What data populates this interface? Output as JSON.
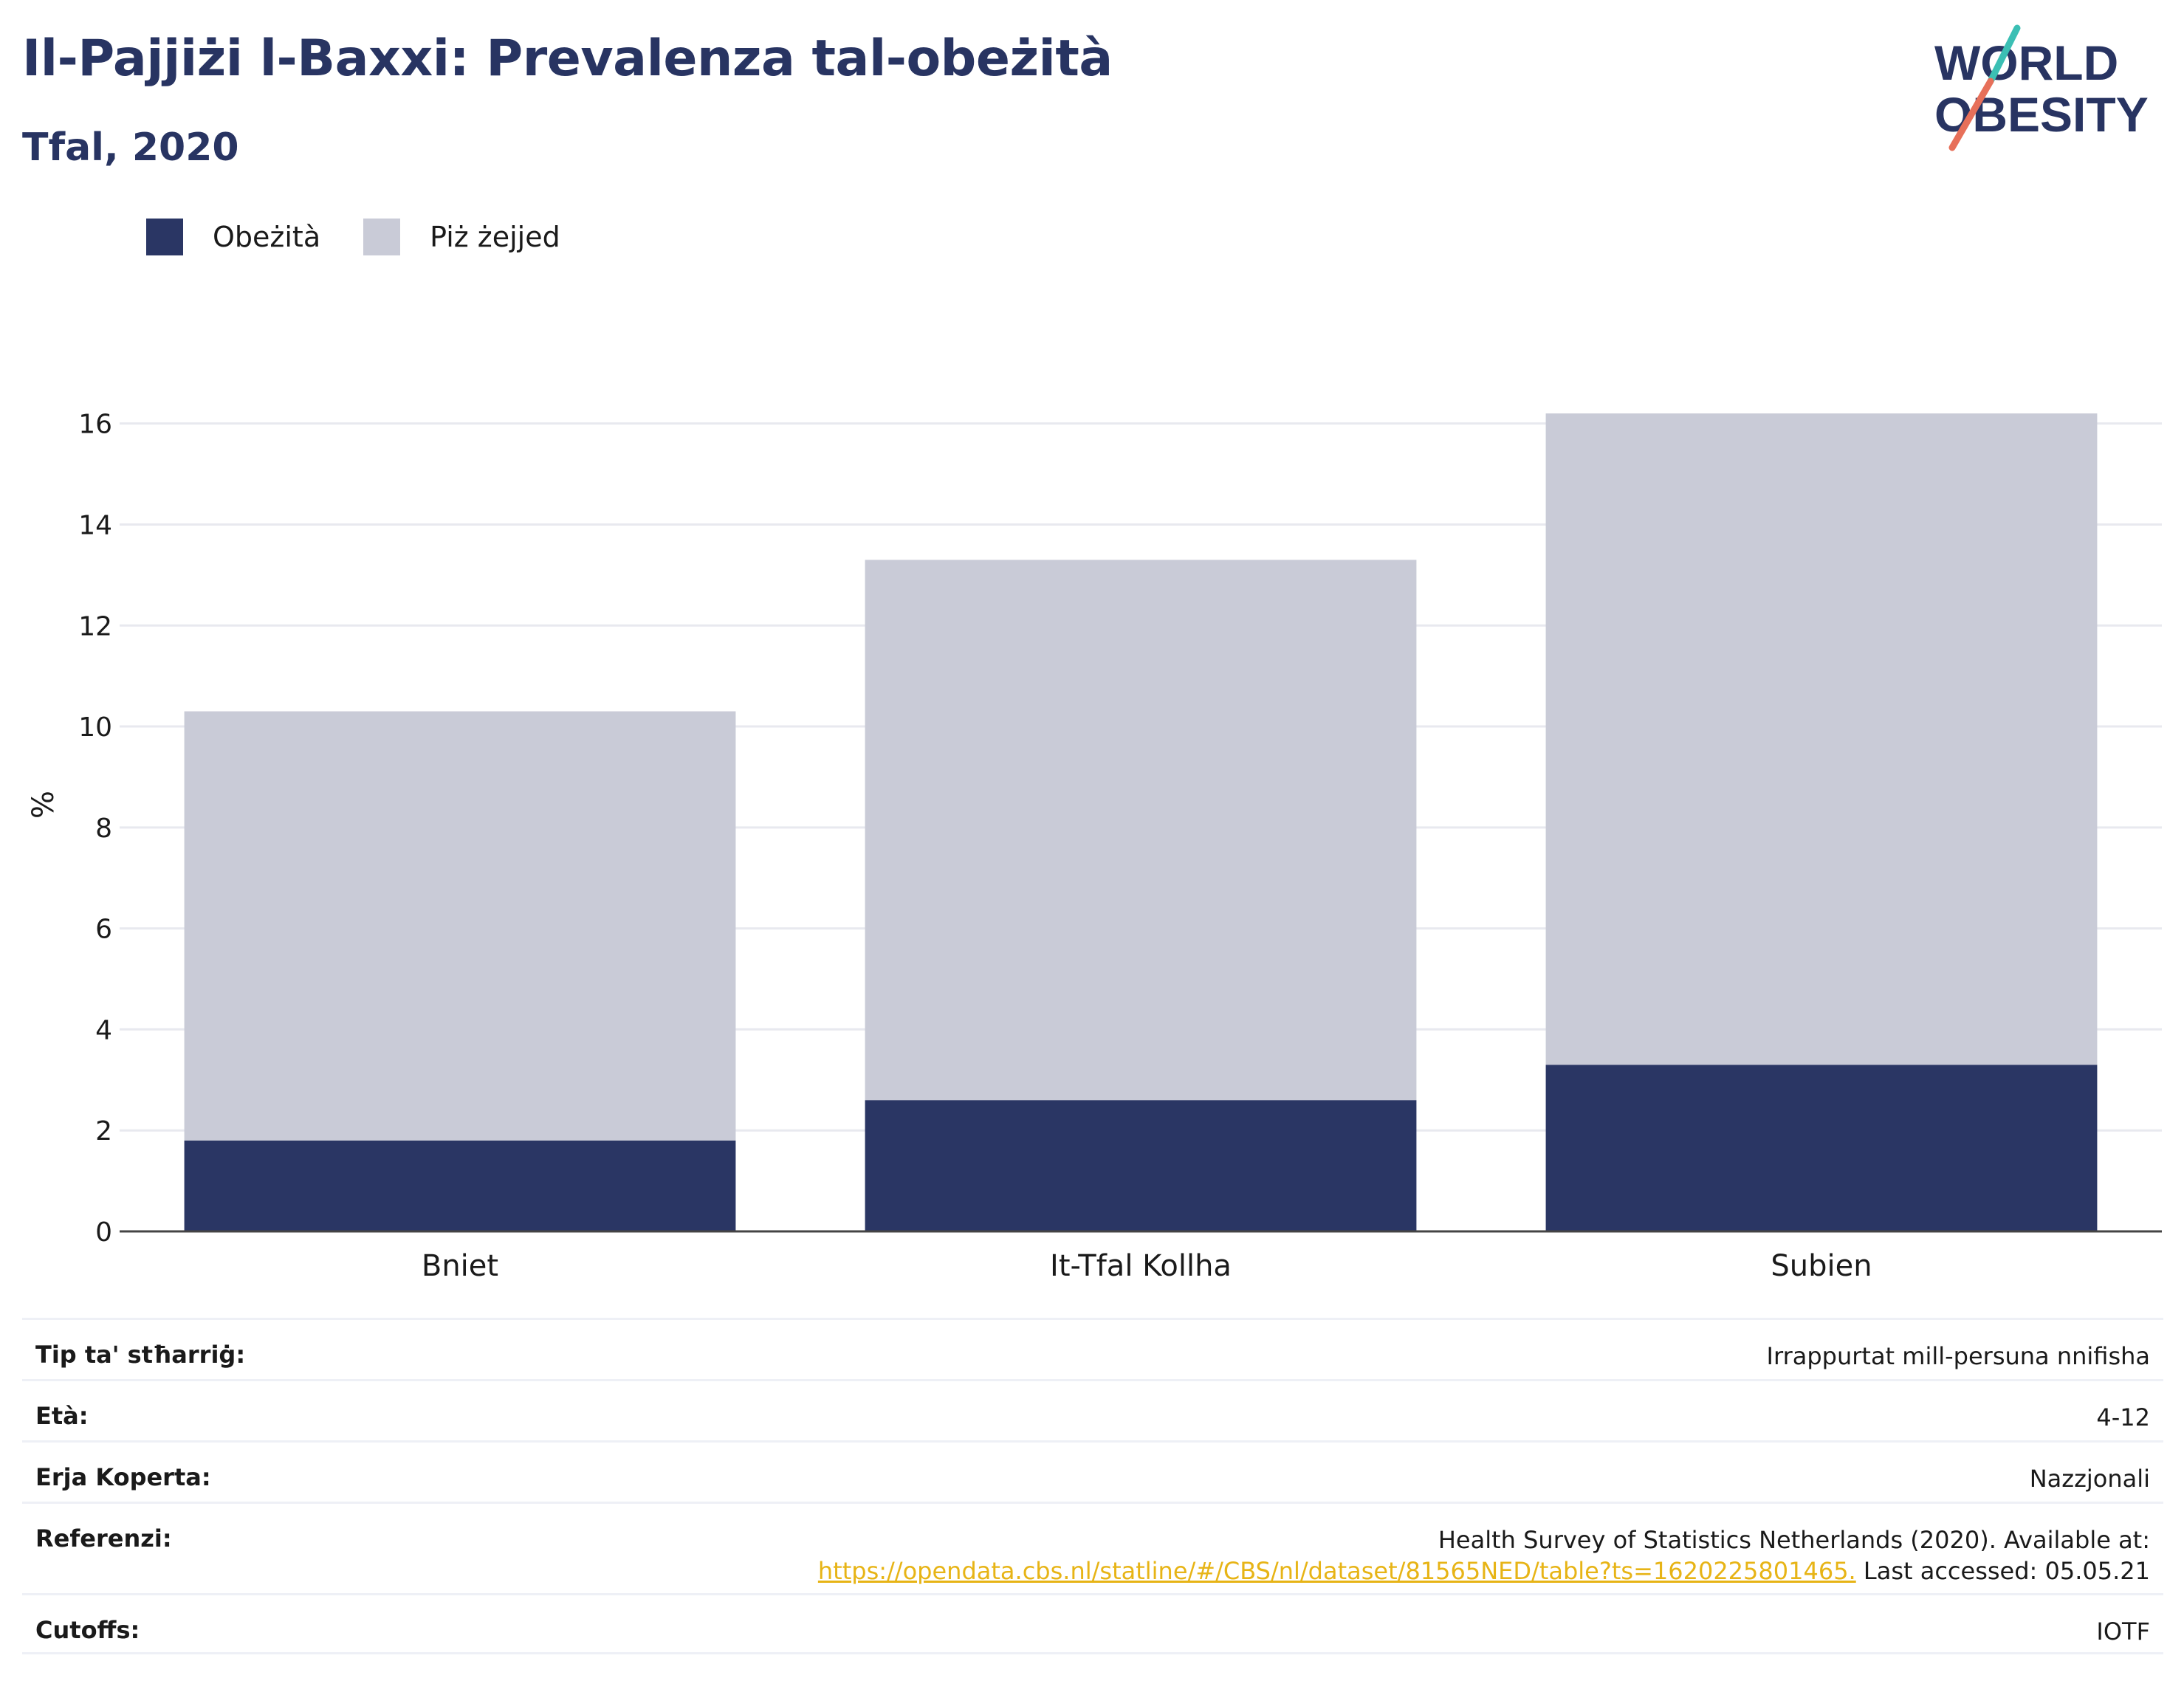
{
  "title": "Il-Pajjiżi l-Baxxi: Prevalenza tal-obeżità",
  "subtitle": "Tfal, 2020",
  "logo": {
    "line1": "WORLD",
    "line2": "OBESITY",
    "accent_teal": "#3bbfb4",
    "accent_coral": "#e7705a",
    "text_color": "#283462"
  },
  "legend": [
    {
      "label": "Obeżità",
      "color": "#2a3664"
    },
    {
      "label": "Piż żejjed",
      "color": "#c9cbd7"
    }
  ],
  "chart_data": {
    "type": "bar",
    "stacked": true,
    "categories": [
      "Bniet",
      "It-Tfal Kollha",
      "Subien"
    ],
    "series": [
      {
        "name": "Obeżità",
        "color": "#2a3664",
        "values": [
          1.8,
          2.6,
          3.3
        ]
      },
      {
        "name": "Piż żejjed",
        "color": "#c9cbd7",
        "values": [
          8.5,
          10.7,
          12.9
        ]
      }
    ],
    "ylabel": "%",
    "ylim": [
      0,
      16.2
    ],
    "yticks": [
      0,
      2,
      4,
      6,
      8,
      10,
      12,
      14,
      16
    ],
    "grid": true,
    "legend_position": "top-left"
  },
  "info": [
    {
      "label": "Tip ta' stħarriġ:",
      "value": "Irrappurtat mill-persuna nnifisha"
    },
    {
      "label": "Età:",
      "value": "4-12"
    },
    {
      "label": "Erja Koperta:",
      "value": "Nazzjonali"
    },
    {
      "label": "Referenzi:",
      "value": "Health Survey of Statistics Netherlands (2020). Available at:",
      "link": "https://opendata.cbs.nl/statline/#/CBS/nl/dataset/81565NED/table?ts=1620225801465.",
      "suffix": " Last accessed: 05.05.21"
    },
    {
      "label": "Cutoffs:",
      "value": "IOTF"
    }
  ]
}
